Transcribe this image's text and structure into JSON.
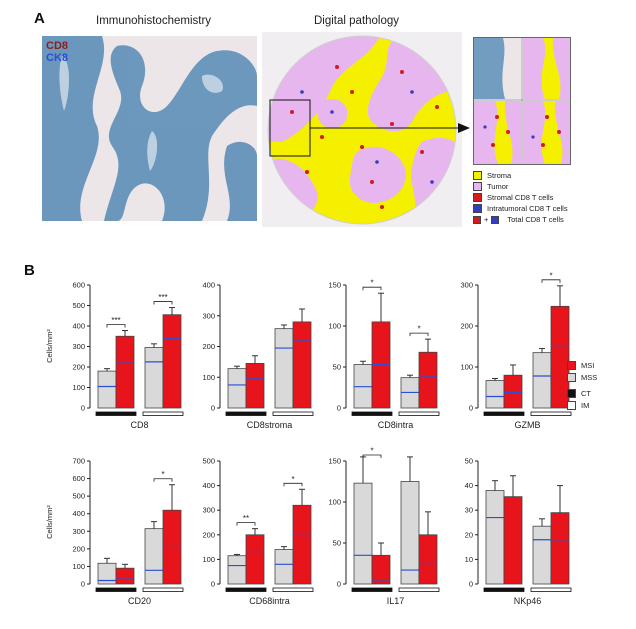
{
  "panel_a": {
    "letter": "A",
    "ihc_title": "Immunohistochemistry",
    "dp_title": "Digital pathology",
    "stain_1": "CD8",
    "stain_2": "CK8",
    "colors": {
      "stroma": "#f5f000",
      "tumor": "#e7b6ef",
      "stromal_cd8": "#d01c1c",
      "intratumoral_cd8": "#2f3fbf",
      "ihc_blue": "#5e8fb8",
      "ihc_bg": "#ece6e8"
    },
    "legend": {
      "stroma": "Stroma",
      "tumor": "Tumor",
      "stromal": "Stromal CD8 T cells",
      "intratumoral": "Intratumoral CD8 T cells",
      "plus": "+",
      "total": "Total CD8 T cells"
    }
  },
  "panel_b": {
    "letter": "B",
    "ylabel": "Cells/mm²",
    "legend": {
      "msi": "MSI",
      "mss": "MSS",
      "ct": "CT",
      "im": "IM"
    },
    "colors": {
      "msi": "#e8141b",
      "mss": "#d9d9d9",
      "median": "#2a4fd6"
    }
  },
  "chart_data": [
    {
      "type": "bar",
      "title": "CD8",
      "ylim": [
        0,
        600
      ],
      "yticks": [
        0,
        100,
        200,
        300,
        400,
        500,
        600
      ],
      "groups": [
        "CT",
        "IM"
      ],
      "series": [
        {
          "name": "MSS",
          "values": [
            180,
            295
          ],
          "errors": [
            12,
            18
          ],
          "medians": [
            105,
            225
          ]
        },
        {
          "name": "MSI",
          "values": [
            350,
            455
          ],
          "errors": [
            28,
            35
          ],
          "medians": [
            225,
            340
          ]
        }
      ],
      "significance": [
        "***",
        "***"
      ]
    },
    {
      "type": "bar",
      "title": "CD8stroma",
      "ylim": [
        0,
        400
      ],
      "yticks": [
        0,
        100,
        200,
        300,
        400
      ],
      "groups": [
        "CT",
        "IM"
      ],
      "series": [
        {
          "name": "MSS",
          "values": [
            128,
            258
          ],
          "errors": [
            8,
            12
          ],
          "medians": [
            75,
            195
          ]
        },
        {
          "name": "MSI",
          "values": [
            145,
            280
          ],
          "errors": [
            25,
            42
          ],
          "medians": [
            95,
            218
          ]
        }
      ],
      "significance": [
        "",
        ""
      ]
    },
    {
      "type": "bar",
      "title": "CD8intra",
      "ylim": [
        0,
        150
      ],
      "yticks": [
        0,
        50,
        100,
        150
      ],
      "groups": [
        "CT",
        "IM"
      ],
      "series": [
        {
          "name": "MSS",
          "values": [
            53,
            37
          ],
          "errors": [
            4,
            3
          ],
          "medians": [
            26,
            19
          ]
        },
        {
          "name": "MSI",
          "values": [
            105,
            68
          ],
          "errors": [
            35,
            16
          ],
          "medians": [
            53,
            39
          ]
        }
      ],
      "significance": [
        "*",
        "*"
      ]
    },
    {
      "type": "bar",
      "title": "GZMB",
      "ylim": [
        0,
        300
      ],
      "yticks": [
        0,
        100,
        200,
        300
      ],
      "groups": [
        "CT",
        "IM"
      ],
      "series": [
        {
          "name": "MSS",
          "values": [
            67,
            135
          ],
          "errors": [
            5,
            10
          ],
          "medians": [
            28,
            78
          ]
        },
        {
          "name": "MSI",
          "values": [
            80,
            248
          ],
          "errors": [
            25,
            50
          ],
          "medians": [
            38,
            152
          ]
        }
      ],
      "significance": [
        "",
        "*"
      ]
    },
    {
      "type": "bar",
      "title": "CD20",
      "ylim": [
        0,
        700
      ],
      "yticks": [
        0,
        100,
        200,
        300,
        400,
        500,
        600,
        700
      ],
      "groups": [
        "CT",
        "IM"
      ],
      "series": [
        {
          "name": "MSS",
          "values": [
            118,
            315
          ],
          "errors": [
            28,
            40
          ],
          "medians": [
            20,
            78
          ]
        },
        {
          "name": "MSI",
          "values": [
            90,
            420
          ],
          "errors": [
            22,
            145
          ],
          "medians": [
            35,
            208
          ]
        }
      ],
      "significance": [
        "",
        "*"
      ]
    },
    {
      "type": "bar",
      "title": "CD68intra",
      "ylim": [
        0,
        500
      ],
      "yticks": [
        0,
        100,
        200,
        300,
        400,
        500
      ],
      "groups": [
        "CT",
        "IM"
      ],
      "series": [
        {
          "name": "MSS",
          "values": [
            115,
            140
          ],
          "errors": [
            5,
            12
          ],
          "medians": [
            75,
            80
          ]
        },
        {
          "name": "MSI",
          "values": [
            200,
            320
          ],
          "errors": [
            25,
            65
          ],
          "medians": [
            140,
            198
          ]
        }
      ],
      "significance": [
        "**",
        "*"
      ]
    },
    {
      "type": "bar",
      "title": "IL17",
      "ylim": [
        0,
        150
      ],
      "yticks": [
        0,
        50,
        100,
        150
      ],
      "groups": [
        "CT",
        "IM"
      ],
      "series": [
        {
          "name": "MSS",
          "values": [
            123,
            125
          ],
          "errors": [
            32,
            30
          ],
          "medians": [
            35,
            17
          ]
        },
        {
          "name": "MSI",
          "values": [
            35,
            60
          ],
          "errors": [
            15,
            28
          ],
          "medians": [
            5,
            25
          ]
        }
      ],
      "significance": [
        "*",
        ""
      ]
    },
    {
      "type": "bar",
      "title": "NKp46",
      "ylim": [
        0,
        50
      ],
      "yticks": [
        0,
        10,
        20,
        30,
        40,
        50
      ],
      "groups": [
        "CT",
        "IM"
      ],
      "series": [
        {
          "name": "MSS",
          "values": [
            38,
            23.5
          ],
          "errors": [
            4,
            3
          ],
          "medians": [
            27,
            18
          ]
        },
        {
          "name": "MSI",
          "values": [
            35.5,
            29
          ],
          "errors": [
            8.5,
            11
          ],
          "medians": [
            null,
            18
          ]
        }
      ],
      "significance": [
        "",
        ""
      ]
    }
  ]
}
